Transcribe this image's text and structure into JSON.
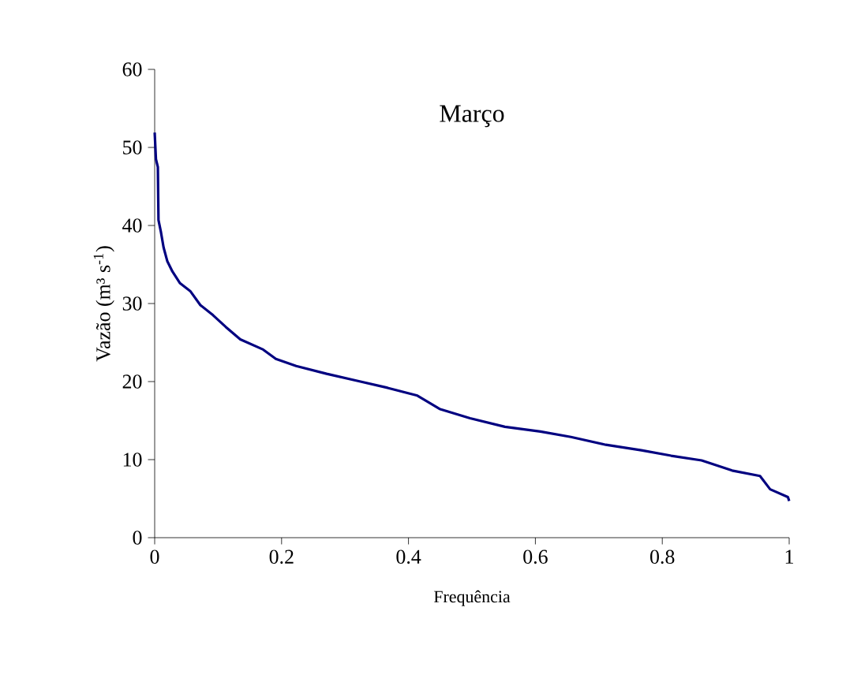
{
  "chart_data": {
    "type": "line",
    "title": "Março",
    "xlabel": "Frequência",
    "ylabel": "Vazão (m³ s$^{-1}$)",
    "xlim": [
      0,
      1
    ],
    "xticks": [
      0,
      0.2,
      0.4,
      0.6,
      0.8,
      1
    ],
    "ylim": [
      0,
      60
    ],
    "yticks": [
      0,
      10,
      20,
      30,
      40,
      50,
      60
    ],
    "series": [
      {
        "color": "#000080",
        "x": [
          0,
          0.002,
          0.005,
          0.006,
          0.01,
          0.014,
          0.02,
          0.028,
          0.04,
          0.056,
          0.072,
          0.092,
          0.112,
          0.135,
          0.171,
          0.191,
          0.223,
          0.271,
          0.319,
          0.367,
          0.414,
          0.449,
          0.497,
          0.552,
          0.608,
          0.656,
          0.711,
          0.767,
          0.814,
          0.862,
          0.91,
          0.954,
          0.97,
          0.998,
          1
        ],
        "values": [
          51.9,
          48.5,
          47.5,
          40.7,
          39.1,
          37.2,
          35.4,
          34.1,
          32.6,
          31.6,
          29.8,
          28.5,
          27,
          25.4,
          24.1,
          22.9,
          22,
          21,
          20.1,
          19.2,
          18.2,
          16.5,
          15.3,
          14.2,
          13.6,
          12.9,
          11.9,
          11.2,
          10.5,
          9.9,
          8.6,
          7.9,
          6.2,
          5.2,
          4.7
        ]
      }
    ]
  }
}
